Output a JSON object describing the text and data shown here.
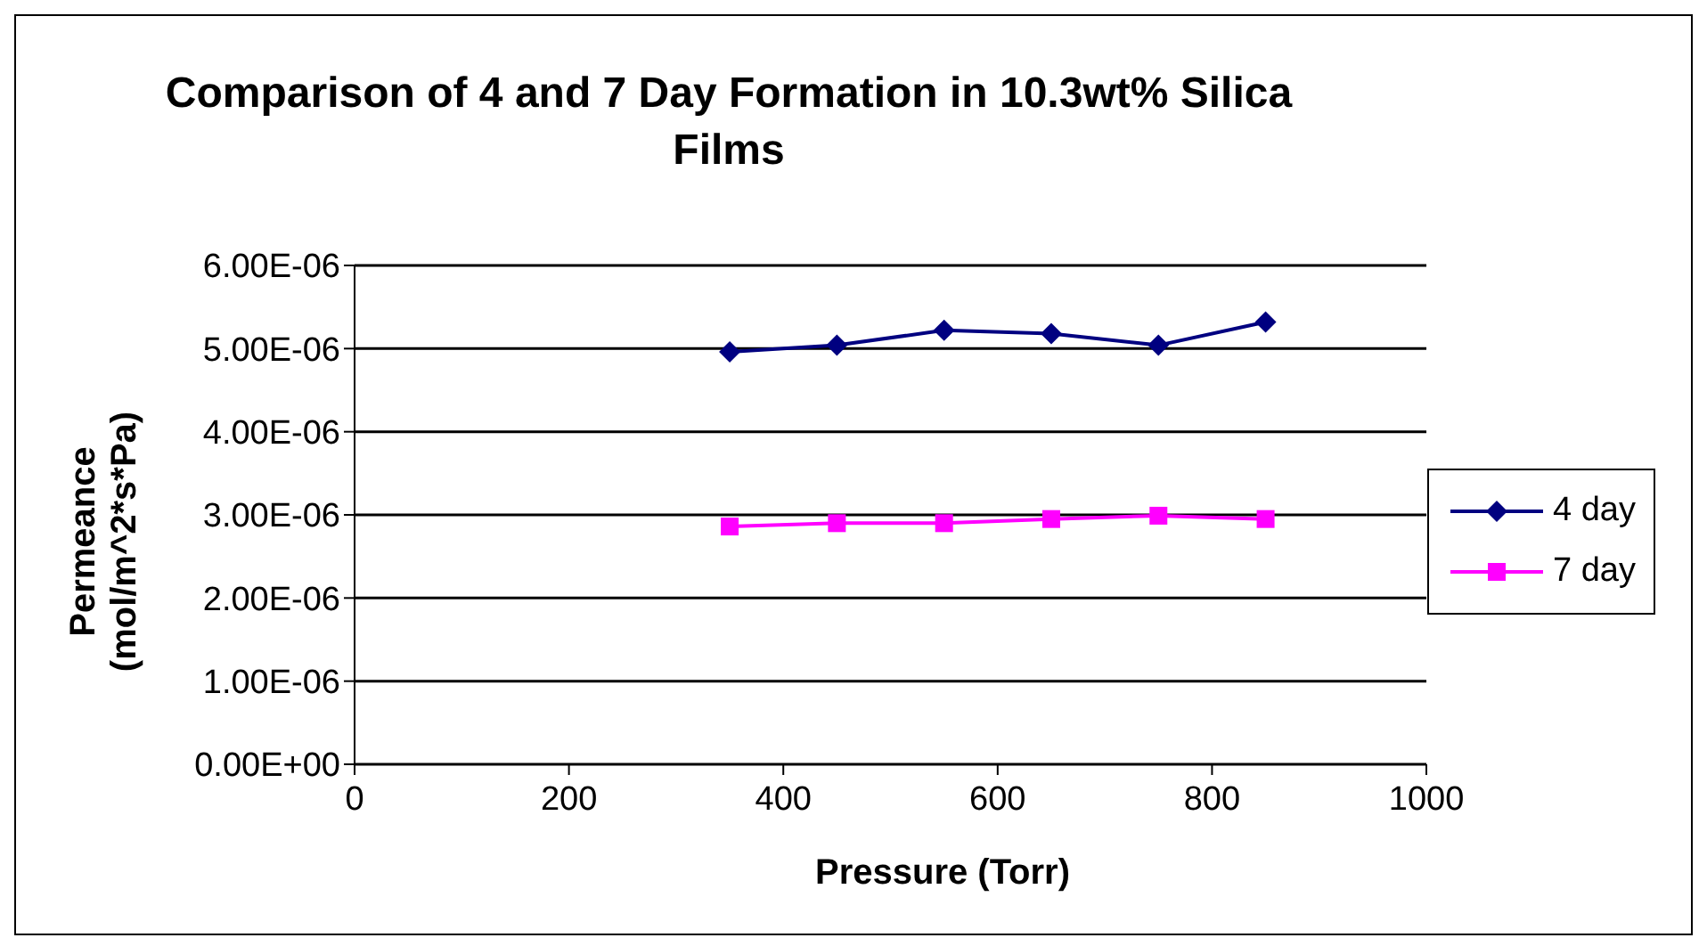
{
  "chart_data": {
    "type": "line",
    "title": "Comparison of 4 and 7 Day Formation in 10.3wt% Silica Films",
    "xlabel": "Pressure (Torr)",
    "ylabel": "Permeance (mol/m^2*s*Pa)",
    "x": [
      350,
      450,
      550,
      650,
      750,
      850
    ],
    "series": [
      {
        "name": "4 day",
        "color": "#000080",
        "marker": "diamond",
        "values": [
          4.96e-06,
          5.04e-06,
          5.22e-06,
          5.18e-06,
          5.04e-06,
          5.32e-06
        ]
      },
      {
        "name": "7 day",
        "color": "#ff00ff",
        "marker": "square",
        "values": [
          2.86e-06,
          2.9e-06,
          2.9e-06,
          2.95e-06,
          2.99e-06,
          2.95e-06
        ]
      }
    ],
    "xlim": [
      0,
      1000
    ],
    "xticks": [
      0,
      200,
      400,
      600,
      800,
      1000
    ],
    "ylim": [
      0,
      6e-06
    ],
    "yticks": [
      {
        "value": 0,
        "label": "0.00E+00"
      },
      {
        "value": 1e-06,
        "label": "1.00E-06"
      },
      {
        "value": 2e-06,
        "label": "2.00E-06"
      },
      {
        "value": 3e-06,
        "label": "3.00E-06"
      },
      {
        "value": 4e-06,
        "label": "4.00E-06"
      },
      {
        "value": 5e-06,
        "label": "5.00E-06"
      },
      {
        "value": 6e-06,
        "label": "6.00E-06"
      }
    ],
    "grid": "y",
    "legend": "right"
  }
}
